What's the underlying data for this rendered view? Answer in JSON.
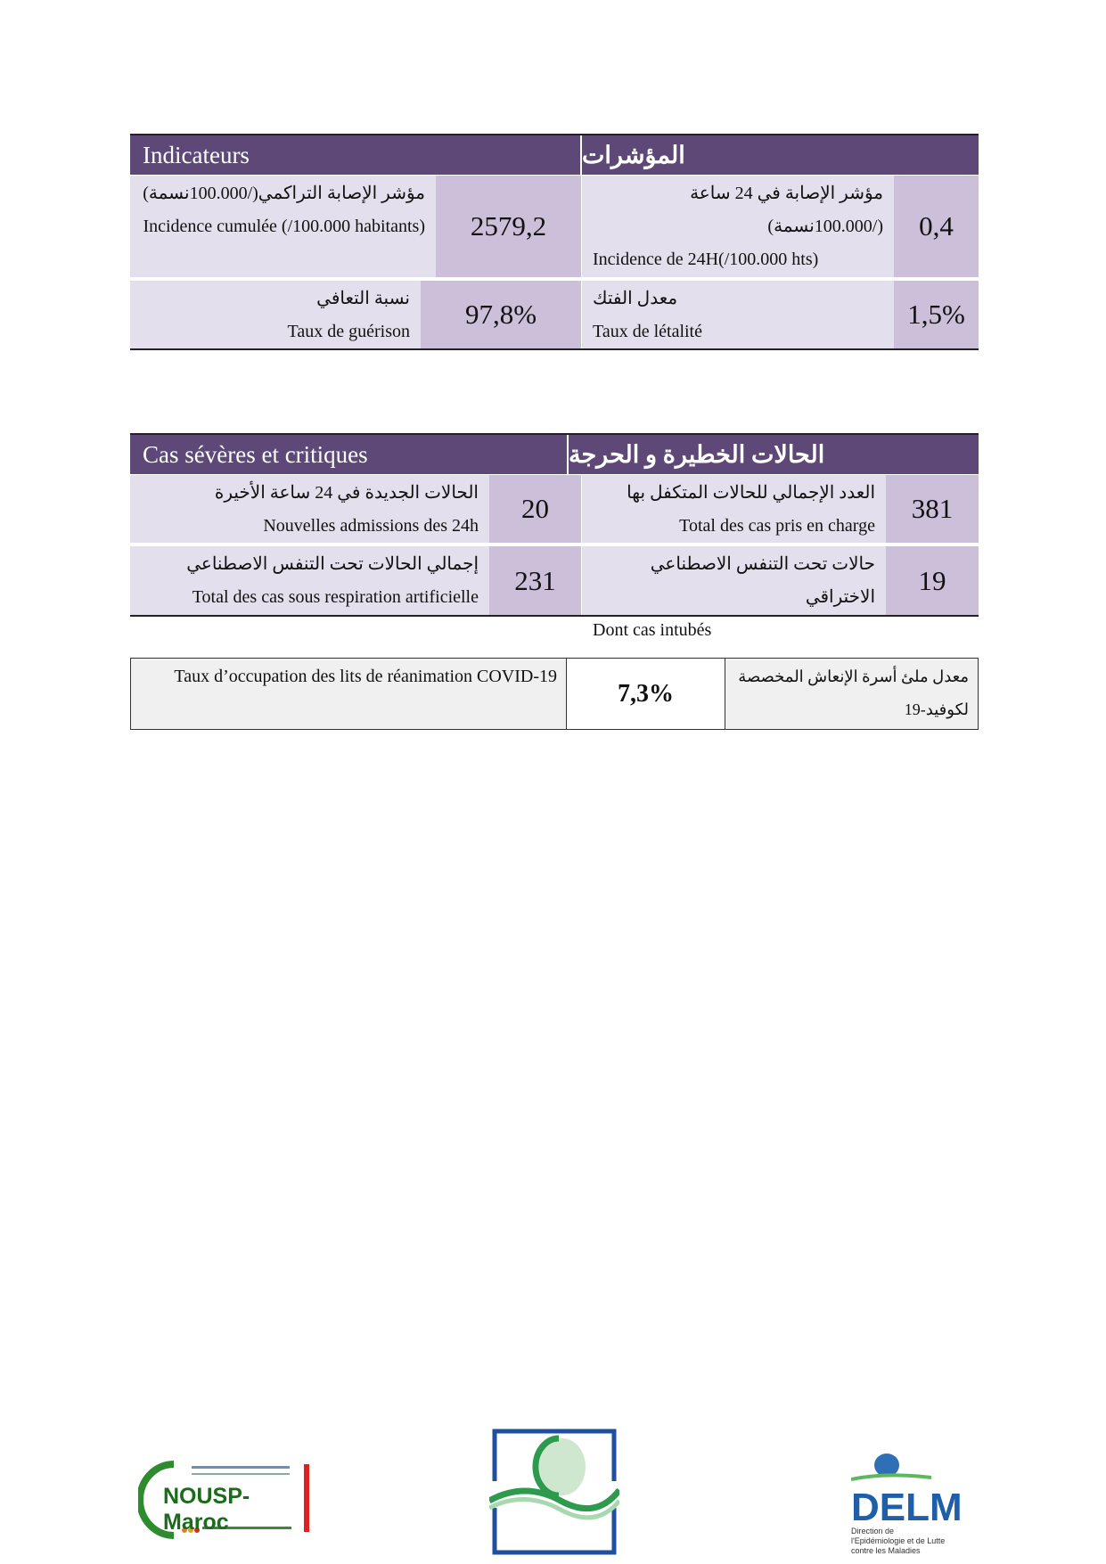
{
  "indicators": {
    "title_fr": "Indicateurs",
    "title_ar": "المؤشرات",
    "cumulative_incidence": {
      "label_ar": "مؤشر الإصابة التراكمي(/100.000نسمة)",
      "label_fr": "Incidence cumulée (/100.000 habitants)",
      "value": "2579,2"
    },
    "incidence_24h": {
      "label_ar": "مؤشر الإصابة في 24 ساعة (/100.000نسمة)",
      "label_fr": "Incidence de 24H(/100.000 hts)",
      "value": "0,4"
    },
    "recovery_rate": {
      "label_ar": "نسبة  التعافي",
      "label_fr": "Taux de guérison",
      "value": "97,8%"
    },
    "fatality_rate": {
      "label_ar": "معدل الفتك",
      "label_fr": "Taux de létalité",
      "value": "1,5%"
    }
  },
  "severe": {
    "title_fr": "Cas sévères et critiques",
    "title_ar": "الحالات الخطيرة و الحرجة",
    "new_admissions": {
      "label_ar": "الحالات الجديدة في 24 ساعة الأخيرة",
      "label_fr": "Nouvelles admissions des 24h",
      "value": "20"
    },
    "total_managed": {
      "label_ar": "العدد الإجمالي للحالات المتكفل بها",
      "label_fr": "Total des cas pris en charge",
      "value": "381"
    },
    "artificial_respiration": {
      "label_ar": "إجمالي الحالات تحت التنفس الاصطناعي",
      "label_fr": "Total des cas sous respiration artificielle",
      "value": "231"
    },
    "intubated": {
      "label_ar": "حالات تحت التنفس الاصطناعي الاختراقي",
      "label_fr": "Dont cas intubés",
      "value": "19"
    }
  },
  "occupancy": {
    "label_fr": "Taux d’occupation des lits de réanimation COVID-19",
    "label_ar": "معدل ملئ أسرة الإنعاش المخصصة لكوفيد-19",
    "value": "7,3%"
  },
  "logos": {
    "nousp": "NOUSP-Maroc",
    "delm": "DELM",
    "delm_sub": "Direction de l'Epidémiologie et de Lutte contre les Maladies"
  },
  "colors": {
    "header": "#5e4878",
    "value_cell": "#cbbfd9",
    "text_cell": "#e4dfec"
  }
}
